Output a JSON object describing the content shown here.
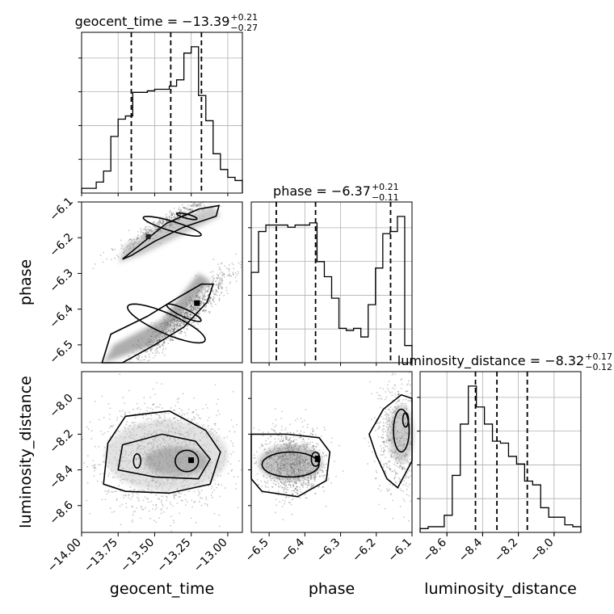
{
  "chart_data": {
    "type": "corner",
    "parameters": [
      "geocent_time",
      "phase",
      "luminosity_distance"
    ],
    "axis_labels": [
      "geocent_time",
      "phase",
      "luminosity_distance"
    ],
    "titles": [
      {
        "param": "geocent_time",
        "text": "geocent_time = −13.39",
        "sup": "+0.21",
        "sub": "−0.27"
      },
      {
        "param": "phase",
        "text": "phase = −6.37",
        "sup": "+0.21",
        "sub": "−0.11"
      },
      {
        "param": "luminosity_distance",
        "text": "luminosity_distance = −8.32",
        "sup": "+0.17",
        "sub": "−0.12"
      }
    ],
    "ranges": {
      "geocent_time": [
        -14.0,
        -12.9
      ],
      "phase": [
        -6.55,
        -6.1
      ],
      "luminosity_distance": [
        -8.75,
        -7.85
      ]
    },
    "ticks": {
      "geocent_time": [
        -14.0,
        -13.75,
        -13.5,
        -13.25,
        -13.0
      ],
      "phase": [
        -6.5,
        -6.4,
        -6.3,
        -6.2,
        -6.1
      ],
      "luminosity_distance": [
        -8.6,
        -8.4,
        -8.2,
        -8.0
      ]
    },
    "tick_labels": {
      "geocent_time": [
        "−14.00",
        "−13.75",
        "−13.50",
        "−13.25",
        "−13.00"
      ],
      "phase": [
        "−6.5",
        "−6.4",
        "−6.3",
        "−6.2",
        "−6.1"
      ],
      "luminosity_distance": [
        "−8.6",
        "−8.4",
        "−8.2",
        "−8.0"
      ]
    },
    "quantiles": {
      "geocent_time": [
        -13.66,
        -13.39,
        -13.18
      ],
      "phase": [
        -6.48,
        -6.37,
        -6.16
      ],
      "luminosity_distance": [
        -8.44,
        -8.32,
        -8.15
      ]
    },
    "histograms": {
      "geocent_time": [
        3,
        3,
        7,
        14,
        36,
        47,
        49,
        64,
        64,
        65,
        66,
        66,
        68,
        72,
        89,
        93,
        62,
        46,
        25,
        15,
        10,
        8
      ],
      "phase": [
        42,
        61,
        64,
        64,
        64,
        63,
        64,
        64,
        65,
        47,
        40,
        30,
        16,
        15,
        16,
        12,
        27,
        44,
        60,
        61,
        68,
        8
      ],
      "luminosity_distance": [
        2,
        3,
        3,
        9,
        30,
        57,
        77,
        66,
        57,
        48,
        47,
        40,
        36,
        27,
        25,
        13,
        8,
        8,
        4,
        3
      ]
    },
    "grid": true
  }
}
